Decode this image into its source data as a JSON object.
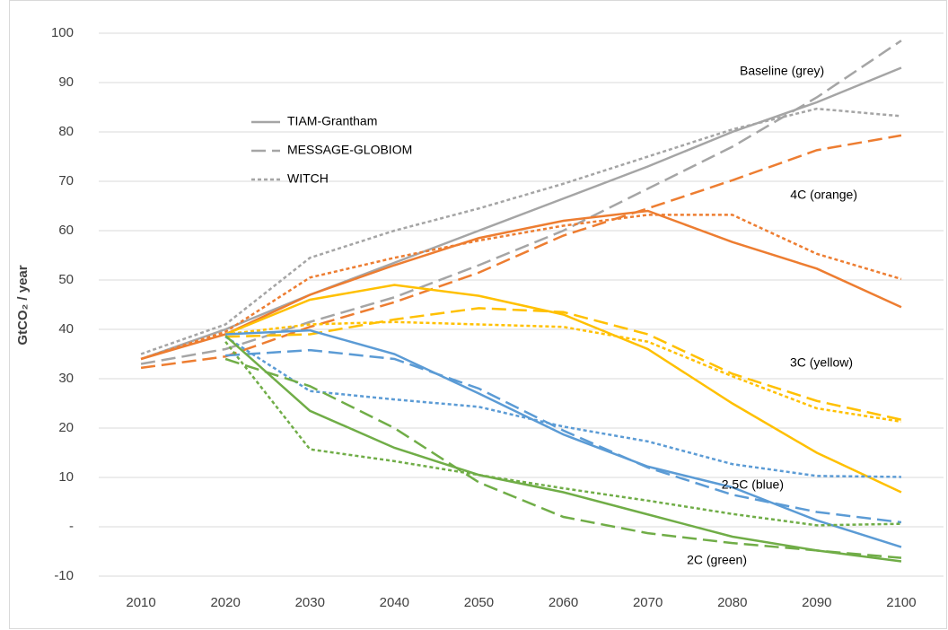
{
  "chart_data": {
    "type": "line",
    "y_axis_label": "GtCO₂ / year",
    "x": [
      2010,
      2020,
      2030,
      2040,
      2050,
      2060,
      2070,
      2080,
      2090,
      2100
    ],
    "xlim": [
      2005,
      2105
    ],
    "xticks": [
      2010,
      2020,
      2030,
      2040,
      2050,
      2060,
      2070,
      2080,
      2090,
      2100
    ],
    "ylim": [
      -10,
      100
    ],
    "yticks": [
      -10,
      {
        "value": 0,
        "label": "-"
      },
      10,
      20,
      30,
      40,
      50,
      60,
      70,
      80,
      90,
      100
    ],
    "grid": true,
    "legend": [
      {
        "name": "TIAM-Grantham",
        "color": "#a5a5a5",
        "dash": "solid"
      },
      {
        "name": "MESSAGE-GLOBIOM",
        "color": "#a5a5a5",
        "dash": "dash"
      },
      {
        "name": "WITCH",
        "color": "#a5a5a5",
        "dash": "dot"
      }
    ],
    "annotations": [
      "Baseline (grey)",
      "4C (orange)",
      "3C (yellow)",
      "2.5C (blue)",
      "2C (green)"
    ],
    "series": [
      {
        "color": "#a5a5a5",
        "dash": "solid",
        "values": [
          34,
          40,
          47,
          53.5,
          60,
          66.5,
          73,
          80,
          86,
          93
        ]
      },
      {
        "color": "#a5a5a5",
        "dash": "dash",
        "values": [
          33,
          36,
          41.5,
          46.5,
          53,
          60,
          68.5,
          77,
          87,
          98.5
        ]
      },
      {
        "color": "#a5a5a5",
        "dash": "dot",
        "values": [
          35,
          41,
          54.5,
          60,
          64.5,
          69.5,
          75,
          80.5,
          84.7,
          83.2
        ]
      },
      {
        "color": "#ed7d31",
        "dash": "solid",
        "values": [
          34,
          39,
          47,
          53,
          58.5,
          62,
          64,
          57.7,
          52.3,
          44.5
        ]
      },
      {
        "color": "#ed7d31",
        "dash": "dash",
        "values": [
          32.2,
          34.5,
          40.5,
          45.5,
          51.5,
          59,
          64.5,
          70.2,
          76.3,
          79.3
        ]
      },
      {
        "color": "#ed7d31",
        "dash": "dot",
        "values": [
          34,
          39.5,
          50.5,
          54.5,
          58,
          61,
          63.2,
          63.2,
          55.3,
          50.2
        ]
      },
      {
        "color": "#ffc000",
        "dash": "solid",
        "values": [
          null,
          39,
          46,
          49,
          46.8,
          43,
          36,
          25,
          15,
          7
        ]
      },
      {
        "color": "#ffc000",
        "dash": "dash",
        "values": [
          null,
          38.5,
          39,
          42,
          44.3,
          43.5,
          39,
          31,
          25.5,
          21.7
        ]
      },
      {
        "color": "#ffc000",
        "dash": "dot",
        "values": [
          null,
          39,
          41,
          41.5,
          41,
          40.5,
          37.5,
          30.5,
          24,
          21.3
        ]
      },
      {
        "color": "#5b9bd5",
        "dash": "solid",
        "values": [
          null,
          39,
          39.8,
          35,
          27,
          18.7,
          12.2,
          8,
          1.3,
          -4.1
        ]
      },
      {
        "color": "#5b9bd5",
        "dash": "dash",
        "values": [
          null,
          34.7,
          35.8,
          34,
          28,
          19.5,
          12,
          6.5,
          3,
          0.9
        ]
      },
      {
        "color": "#5b9bd5",
        "dash": "dot",
        "values": [
          null,
          38.5,
          27.5,
          25.8,
          24.3,
          20.3,
          17.3,
          12.7,
          10.3,
          10.1
        ]
      },
      {
        "color": "#70ad47",
        "dash": "solid",
        "values": [
          null,
          38.7,
          23.5,
          16,
          10.5,
          7,
          2.5,
          -2,
          -4.8,
          -7
        ]
      },
      {
        "color": "#70ad47",
        "dash": "dash",
        "values": [
          null,
          34,
          28.5,
          20,
          9,
          2,
          -1.3,
          -3.3,
          -4.8,
          -6.3
        ]
      },
      {
        "color": "#70ad47",
        "dash": "dot",
        "values": [
          null,
          37.5,
          15.7,
          13.3,
          10.5,
          7.8,
          5.3,
          2.6,
          0.3,
          0.6
        ]
      }
    ]
  }
}
